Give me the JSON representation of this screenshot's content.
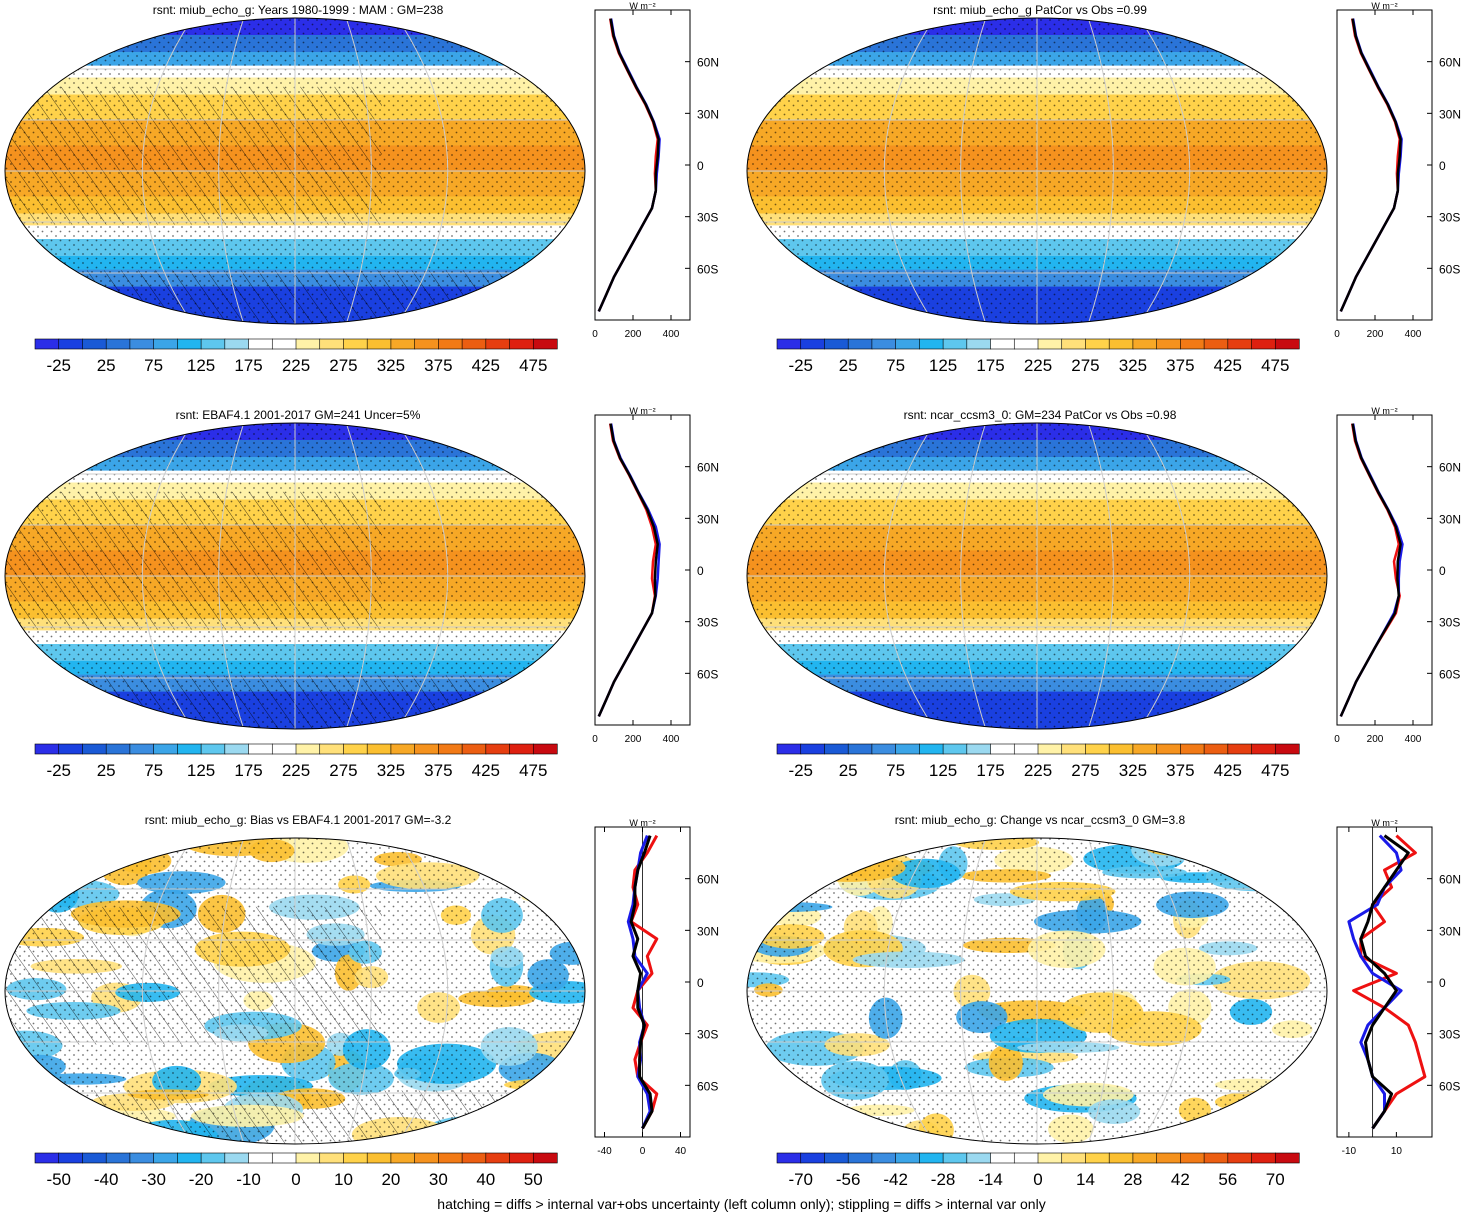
{
  "footnote": "hatching = diffs > internal var+obs uncertainty (left column only); stippling = diffs > internal var only",
  "colors": {
    "clim_scale": [
      "#2b2ee8",
      "#1a40e0",
      "#1a5ad6",
      "#2a74d8",
      "#3b8de0",
      "#3ba5e8",
      "#22b5f0",
      "#5ec7ee",
      "#9bd9f0",
      "#ffffff",
      "#ffffff",
      "#fff2a8",
      "#ffe07a",
      "#ffd24a",
      "#fbbf30",
      "#f7a826",
      "#f5921e",
      "#f27a16",
      "#ec5e12",
      "#e63e10",
      "#de2010",
      "#c80a10"
    ],
    "diff_scale": [
      "#2b2ee8",
      "#1a40e0",
      "#1a5ad6",
      "#2a74d8",
      "#3b8de0",
      "#3ba5e8",
      "#22b5f0",
      "#5ec7ee",
      "#9bd9f0",
      "#ffffff",
      "#ffffff",
      "#fff2a8",
      "#ffe07a",
      "#ffd24a",
      "#fbbf30",
      "#f7a826",
      "#f5921e",
      "#f27a16",
      "#ec5e12",
      "#e63e10",
      "#de2010",
      "#c80a10"
    ],
    "profile_red": "#ee1111",
    "profile_blue": "#1a1ae8",
    "profile_black": "#000000"
  },
  "chart_data": [
    {
      "type": "heatmap",
      "title": "rsnt: miub_echo_g: Years 1980-1999 : MAM : GM=238",
      "colorbar_labels": [
        "-25",
        "25",
        "75",
        "125",
        "175",
        "225",
        "275",
        "325",
        "375",
        "425",
        "475"
      ],
      "hatching": true,
      "profile": {
        "units": "W m⁻²",
        "xlim": [
          0,
          500
        ],
        "xticks": [
          "0",
          "200",
          "400"
        ],
        "yticks": [
          "60N",
          "30N",
          "0",
          "30S",
          "60S"
        ],
        "lat": [
          85,
          75,
          65,
          55,
          45,
          35,
          25,
          15,
          5,
          -5,
          -15,
          -25,
          -35,
          -45,
          -55,
          -65,
          -75,
          -85
        ],
        "series": [
          {
            "color": "red",
            "values": [
              80,
              95,
              125,
              170,
              215,
              265,
              305,
              330,
              320,
              315,
              320,
              300,
              250,
              200,
              150,
              100,
              60,
              20
            ]
          },
          {
            "color": "blue",
            "values": [
              85,
              100,
              130,
              175,
              220,
              270,
              310,
              340,
              335,
              325,
              320,
              300,
              250,
              200,
              150,
              100,
              60,
              20
            ]
          },
          {
            "color": "black",
            "values": [
              82,
              98,
              128,
              172,
              218,
              268,
              308,
              335,
              330,
              320,
              320,
              300,
              250,
              200,
              150,
              100,
              60,
              20
            ]
          }
        ]
      }
    },
    {
      "type": "heatmap",
      "title": "rsnt: miub_echo_g PatCor vs Obs =0.99",
      "colorbar_labels": [
        "-25",
        "25",
        "75",
        "125",
        "175",
        "225",
        "275",
        "325",
        "375",
        "425",
        "475"
      ],
      "hatching": false,
      "profile": {
        "units": "W m⁻²",
        "xlim": [
          0,
          500
        ],
        "xticks": [
          "0",
          "200",
          "400"
        ],
        "yticks": [
          "60N",
          "30N",
          "0",
          "30S",
          "60S"
        ],
        "lat": [
          85,
          75,
          65,
          55,
          45,
          35,
          25,
          15,
          5,
          -5,
          -15,
          -25,
          -35,
          -45,
          -55,
          -65,
          -75,
          -85
        ],
        "series": [
          {
            "color": "red",
            "values": [
              80,
              95,
              125,
              170,
              215,
              265,
              305,
              330,
              320,
              315,
              320,
              300,
              250,
              200,
              150,
              100,
              60,
              20
            ]
          },
          {
            "color": "blue",
            "values": [
              85,
              100,
              130,
              175,
              220,
              270,
              310,
              340,
              335,
              325,
              320,
              300,
              250,
              200,
              150,
              100,
              60,
              20
            ]
          },
          {
            "color": "black",
            "values": [
              82,
              98,
              128,
              172,
              218,
              268,
              308,
              335,
              330,
              320,
              320,
              300,
              250,
              200,
              150,
              100,
              60,
              20
            ]
          }
        ]
      }
    },
    {
      "type": "heatmap",
      "title": "rsnt: EBAF4.1 2001-2017 GM=241 Uncer=5%",
      "colorbar_labels": [
        "-25",
        "25",
        "75",
        "125",
        "175",
        "225",
        "275",
        "325",
        "375",
        "425",
        "475"
      ],
      "hatching": true,
      "profile": {
        "units": "W m⁻²",
        "xlim": [
          0,
          500
        ],
        "xticks": [
          "0",
          "200",
          "400"
        ],
        "yticks": [
          "60N",
          "30N",
          "0",
          "30S",
          "60S"
        ],
        "lat": [
          85,
          75,
          65,
          55,
          45,
          35,
          25,
          15,
          5,
          -5,
          -15,
          -25,
          -35,
          -45,
          -55,
          -65,
          -75,
          -85
        ],
        "series": [
          {
            "color": "red",
            "values": [
              80,
              95,
              130,
              180,
              225,
              270,
              300,
              320,
              305,
              300,
              315,
              300,
              250,
              200,
              150,
              100,
              60,
              20
            ]
          },
          {
            "color": "blue",
            "values": [
              85,
              100,
              135,
              185,
              230,
              280,
              320,
              340,
              335,
              330,
              320,
              300,
              250,
              200,
              150,
              100,
              60,
              20
            ]
          },
          {
            "color": "black",
            "values": [
              82,
              98,
              132,
              182,
              228,
              275,
              310,
              330,
              320,
              315,
              318,
              300,
              250,
              200,
              150,
              100,
              60,
              20
            ]
          }
        ]
      }
    },
    {
      "type": "heatmap",
      "title": "rsnt: ncar_ccsm3_0: GM=234 PatCor vs Obs =0.98",
      "colorbar_labels": [
        "-25",
        "25",
        "75",
        "125",
        "175",
        "225",
        "275",
        "325",
        "375",
        "425",
        "475"
      ],
      "hatching": false,
      "profile": {
        "units": "W m⁻²",
        "xlim": [
          0,
          500
        ],
        "xticks": [
          "0",
          "200",
          "400"
        ],
        "yticks": [
          "60N",
          "30N",
          "0",
          "30S",
          "60S"
        ],
        "lat": [
          85,
          75,
          65,
          55,
          45,
          35,
          25,
          15,
          5,
          -5,
          -15,
          -25,
          -35,
          -45,
          -55,
          -65,
          -75,
          -85
        ],
        "series": [
          {
            "color": "red",
            "values": [
              80,
              95,
              125,
              170,
              215,
              265,
              305,
              325,
              300,
              310,
              330,
              310,
              255,
              200,
              150,
              100,
              60,
              20
            ]
          },
          {
            "color": "blue",
            "values": [
              85,
              100,
              130,
              175,
              220,
              270,
              315,
              345,
              330,
              325,
              325,
              300,
              250,
              200,
              150,
              100,
              60,
              20
            ]
          },
          {
            "color": "black",
            "values": [
              82,
              98,
              128,
              172,
              218,
              268,
              310,
              335,
              320,
              318,
              325,
              305,
              252,
              200,
              150,
              100,
              60,
              20
            ]
          }
        ]
      }
    },
    {
      "type": "heatmap",
      "title": "rsnt: miub_echo_g: Bias vs EBAF4.1 2001-2017 GM=-3.2",
      "colorbar_labels": [
        "-50",
        "-40",
        "-30",
        "-20",
        "-10",
        "0",
        "10",
        "20",
        "30",
        "40",
        "50"
      ],
      "hatching": true,
      "profile": {
        "units": "W m⁻²",
        "xlim": [
          -50,
          50
        ],
        "xticks": [
          "-40",
          "0",
          "40"
        ],
        "yticks": [
          "60N",
          "30N",
          "0",
          "30S",
          "60S"
        ],
        "lat": [
          85,
          75,
          65,
          55,
          45,
          35,
          25,
          15,
          5,
          -5,
          -15,
          -25,
          -35,
          -45,
          -55,
          -65,
          -75,
          -85
        ],
        "series": [
          {
            "color": "red",
            "values": [
              15,
              5,
              -8,
              -10,
              -5,
              -12,
              15,
              5,
              10,
              -5,
              -10,
              5,
              -2,
              -8,
              -5,
              15,
              10,
              0
            ]
          },
          {
            "color": "blue",
            "values": [
              5,
              -2,
              -5,
              -8,
              -10,
              -15,
              -10,
              -8,
              5,
              -5,
              -3,
              2,
              -3,
              -2,
              -5,
              5,
              8,
              0
            ]
          },
          {
            "color": "black",
            "values": [
              8,
              2,
              -5,
              -8,
              -8,
              -12,
              -5,
              -10,
              -2,
              -5,
              -5,
              2,
              -2,
              -3,
              -3,
              8,
              10,
              0
            ]
          }
        ]
      }
    },
    {
      "type": "heatmap",
      "title": "rsnt: miub_echo_g: Change vs ncar_ccsm3_0 GM=3.8",
      "colorbar_labels": [
        "-70",
        "-56",
        "-42",
        "-28",
        "-14",
        "0",
        "14",
        "28",
        "42",
        "56",
        "70"
      ],
      "hatching": false,
      "profile": {
        "units": "W m⁻²",
        "xlim": [
          -15,
          25
        ],
        "xticks": [
          "-10",
          "10"
        ],
        "yticks": [
          "60N",
          "30N",
          "0",
          "30S",
          "60S"
        ],
        "lat": [
          85,
          75,
          65,
          55,
          45,
          35,
          25,
          15,
          5,
          -5,
          -15,
          -25,
          -35,
          -45,
          -55,
          -65,
          -75,
          -85
        ],
        "series": [
          {
            "color": "red",
            "values": [
              10,
              18,
              5,
              8,
              0,
              5,
              -5,
              -5,
              10,
              -8,
              5,
              15,
              18,
              20,
              22,
              10,
              5,
              0
            ]
          },
          {
            "color": "blue",
            "values": [
              3,
              10,
              12,
              5,
              2,
              -10,
              -8,
              -5,
              0,
              12,
              5,
              -2,
              -5,
              -2,
              0,
              5,
              5,
              0
            ]
          },
          {
            "color": "black",
            "values": [
              5,
              15,
              10,
              5,
              0,
              -2,
              -5,
              -3,
              5,
              10,
              5,
              0,
              -3,
              -2,
              0,
              8,
              5,
              0
            ]
          }
        ]
      }
    }
  ]
}
